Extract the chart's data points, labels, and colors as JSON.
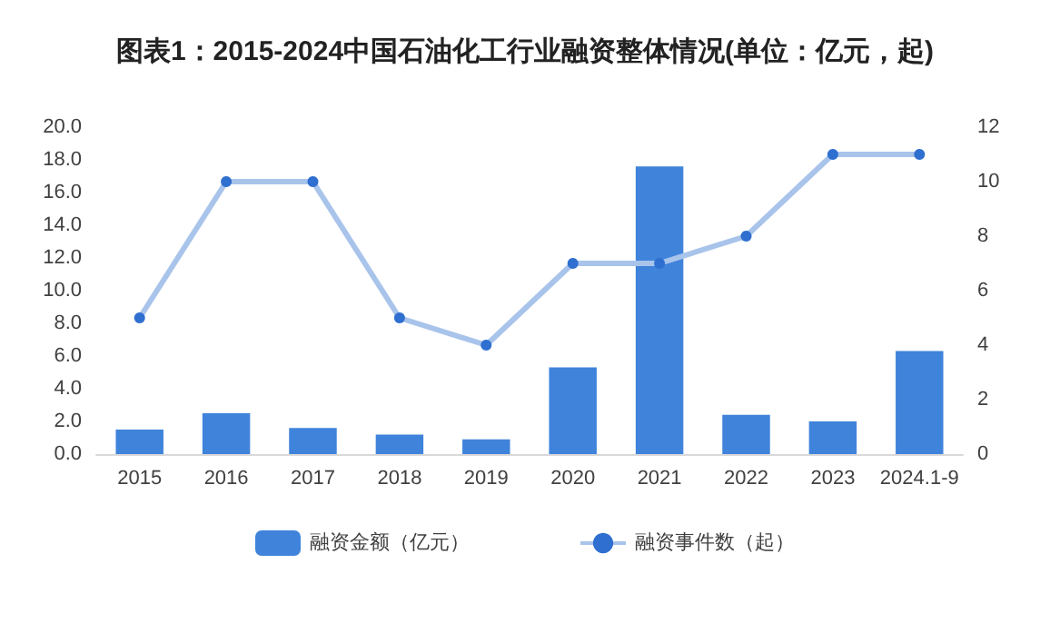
{
  "chart_data": {
    "type": "bar",
    "title": "图表1：2015-2024中国石油化工行业融资整体情况(单位：亿元，起)",
    "categories": [
      "2015",
      "2016",
      "2017",
      "2018",
      "2019",
      "2020",
      "2021",
      "2022",
      "2023",
      "2024.1-9"
    ],
    "series": [
      {
        "name": "融资金额（亿元）",
        "color": "#3f83db",
        "values": [
          1.5,
          2.5,
          1.6,
          1.2,
          0.9,
          5.3,
          17.6,
          2.4,
          2.0,
          6.3
        ]
      },
      {
        "name": "融资事件数（起）",
        "type": "line",
        "axis": "y2",
        "color": "#a9c4eb",
        "values": [
          5,
          10,
          10,
          5,
          4,
          7,
          7,
          8,
          11,
          11
        ]
      }
    ],
    "ylim": [
      0,
      20
    ],
    "yticks": [
      {
        "value": 0,
        "label": "0.0"
      },
      {
        "value": 2,
        "label": "2.0"
      },
      {
        "value": 4,
        "label": "4.0"
      },
      {
        "value": 6,
        "label": "6.0"
      },
      {
        "value": 8,
        "label": "8.0"
      },
      {
        "value": 10,
        "label": "10.0"
      },
      {
        "value": 12,
        "label": "12.0"
      },
      {
        "value": 14,
        "label": "14.0"
      },
      {
        "value": 16,
        "label": "16.0"
      },
      {
        "value": 18,
        "label": "18.0"
      },
      {
        "value": 20,
        "label": "20.0"
      }
    ],
    "y2lim": [
      0,
      12
    ],
    "y2ticks": [
      0,
      2,
      4,
      6,
      8,
      10,
      12
    ],
    "grid": false,
    "legend": "bottom",
    "marker": "circle",
    "line_style": "solid"
  }
}
